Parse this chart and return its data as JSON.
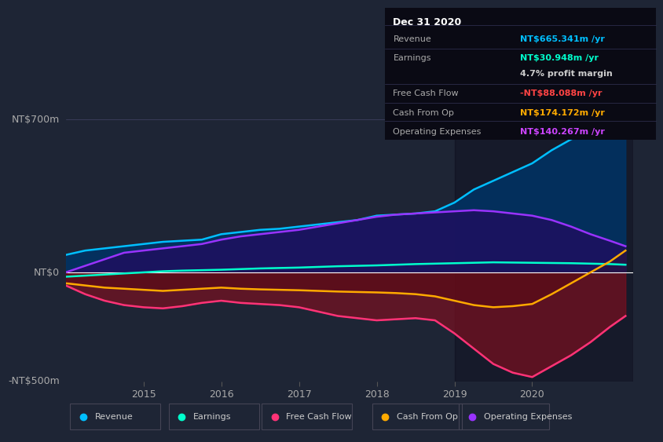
{
  "bg_color": "#1e2535",
  "ylabel_top": "NT$700m",
  "ylabel_zero": "NT$0",
  "ylabel_bot": "-NT$500m",
  "ylim": [
    -500,
    750
  ],
  "xlim": [
    2014.0,
    2021.3
  ],
  "xticks": [
    2015,
    2016,
    2017,
    2018,
    2019,
    2020
  ],
  "info_box": {
    "title": "Dec 31 2020",
    "rows": [
      {
        "label": "Revenue",
        "value": "NT$665.341m /yr",
        "value_color": "#00bfff"
      },
      {
        "label": "Earnings",
        "value": "NT$30.948m /yr",
        "value_color": "#00ffcc"
      },
      {
        "label": "",
        "value": "4.7% profit margin",
        "value_color": "#cccccc"
      },
      {
        "label": "Free Cash Flow",
        "value": "-NT$88.088m /yr",
        "value_color": "#ff4444"
      },
      {
        "label": "Cash From Op",
        "value": "NT$174.172m /yr",
        "value_color": "#ffaa00"
      },
      {
        "label": "Operating Expenses",
        "value": "NT$140.267m /yr",
        "value_color": "#cc44ff"
      }
    ]
  },
  "revenue_color": "#00bfff",
  "earnings_color": "#00ffcc",
  "fcf_color": "#ff3377",
  "cashop_color": "#ffaa00",
  "opex_color": "#9933ff",
  "legend_items": [
    {
      "label": "Revenue",
      "color": "#00bfff"
    },
    {
      "label": "Earnings",
      "color": "#00ffcc"
    },
    {
      "label": "Free Cash Flow",
      "color": "#ff3377"
    },
    {
      "label": "Cash From Op",
      "color": "#ffaa00"
    },
    {
      "label": "Operating Expenses",
      "color": "#9933ff"
    }
  ],
  "x": [
    2014.0,
    2014.25,
    2014.5,
    2014.75,
    2015.0,
    2015.25,
    2015.5,
    2015.75,
    2016.0,
    2016.25,
    2016.5,
    2016.75,
    2017.0,
    2017.25,
    2017.5,
    2017.75,
    2018.0,
    2018.25,
    2018.5,
    2018.75,
    2019.0,
    2019.25,
    2019.5,
    2019.75,
    2020.0,
    2020.25,
    2020.5,
    2020.75,
    2021.0,
    2021.2
  ],
  "revenue": [
    80,
    100,
    110,
    120,
    130,
    140,
    145,
    150,
    175,
    185,
    195,
    200,
    210,
    220,
    230,
    240,
    260,
    265,
    270,
    280,
    320,
    380,
    420,
    460,
    500,
    560,
    610,
    650,
    690,
    730
  ],
  "earnings": [
    -20,
    -15,
    -10,
    -5,
    0,
    5,
    8,
    10,
    12,
    15,
    18,
    20,
    22,
    25,
    28,
    30,
    32,
    35,
    38,
    40,
    42,
    44,
    46,
    45,
    44,
    43,
    42,
    40,
    38,
    35
  ],
  "fcf": [
    -60,
    -100,
    -130,
    -150,
    -160,
    -165,
    -155,
    -140,
    -130,
    -140,
    -145,
    -150,
    -160,
    -180,
    -200,
    -210,
    -220,
    -215,
    -210,
    -220,
    -280,
    -350,
    -420,
    -460,
    -480,
    -430,
    -380,
    -320,
    -250,
    -200
  ],
  "cashop": [
    -50,
    -60,
    -70,
    -75,
    -80,
    -85,
    -80,
    -75,
    -70,
    -75,
    -78,
    -80,
    -82,
    -85,
    -88,
    -90,
    -92,
    -95,
    -100,
    -110,
    -130,
    -150,
    -160,
    -155,
    -145,
    -100,
    -50,
    0,
    50,
    100
  ],
  "opex": [
    0,
    30,
    60,
    90,
    100,
    110,
    120,
    130,
    150,
    165,
    175,
    185,
    195,
    210,
    225,
    240,
    255,
    265,
    270,
    275,
    280,
    285,
    280,
    270,
    260,
    240,
    210,
    175,
    145,
    120
  ]
}
